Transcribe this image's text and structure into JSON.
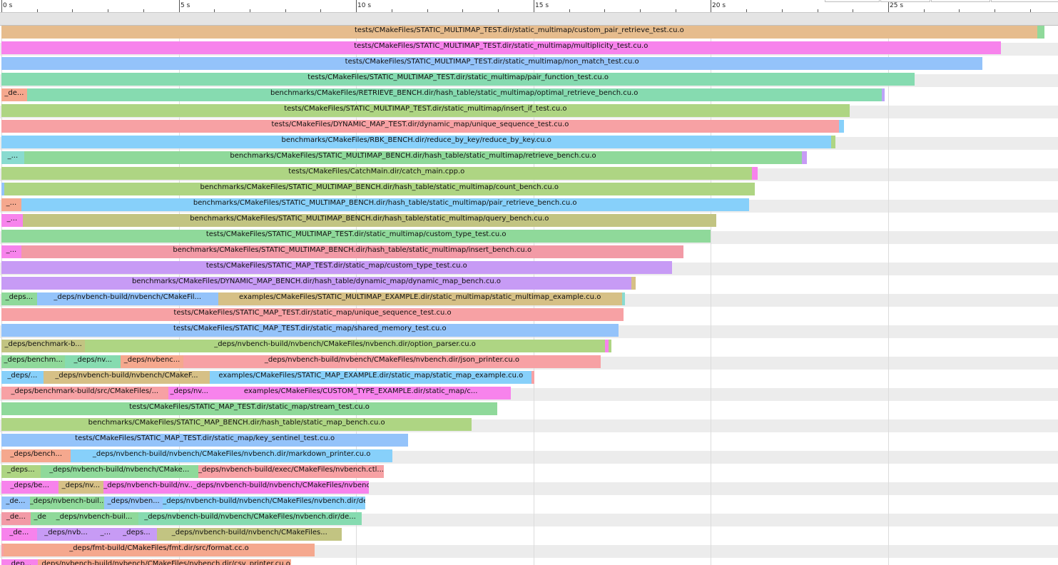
{
  "colors": {
    "orange": "#e6bc8d",
    "green": "#8fd99a",
    "pink": "#f783ec",
    "blue": "#94c3fa",
    "teal": "#86dbb0",
    "salmon": "#f5a88e",
    "lime": "#aed583",
    "rose": "#f7a1a4",
    "sky": "#87d0fa",
    "olive": "#c2c482",
    "purple": "#c79bf5",
    "violet": "#bca4f7",
    "tan": "#d6c086",
    "lightteal": "#89dbd0",
    "mint": "#9be3b6",
    "red": "#f29aa6"
  },
  "chart_data": {
    "type": "timeline",
    "xunit": "s",
    "x_ticks": [
      {
        "value": 0,
        "label": "0 s"
      },
      {
        "value": 5,
        "label": "5 s"
      },
      {
        "value": 10,
        "label": "10 s"
      },
      {
        "value": 15,
        "label": "15 s"
      },
      {
        "value": 20,
        "label": "20 s"
      },
      {
        "value": 25,
        "label": "25 s"
      }
    ],
    "rows": [
      [
        {
          "s": 0,
          "e": 29.2,
          "label": "tests/CMakeFiles/STATIC_MULTIMAP_TEST.dir/static_multimap/custom_pair_retrieve_test.cu.o",
          "c": "orange"
        },
        {
          "s": 29.2,
          "e": 29.41,
          "label": "",
          "c": "green"
        }
      ],
      [
        {
          "s": 0,
          "e": 28.17,
          "label": "tests/CMakeFiles/STATIC_MULTIMAP_TEST.dir/static_multimap/multiplicity_test.cu.o",
          "c": "pink"
        }
      ],
      [
        {
          "s": 0,
          "e": 27.66,
          "label": "tests/CMakeFiles/STATIC_MULTIMAP_TEST.dir/static_multimap/non_match_test.cu.o",
          "c": "blue"
        }
      ],
      [
        {
          "s": 0,
          "e": 25.75,
          "label": "tests/CMakeFiles/STATIC_MULTIMAP_TEST.dir/static_multimap/pair_function_test.cu.o",
          "c": "teal"
        }
      ],
      [
        {
          "s": 0,
          "e": 0.72,
          "label": "_de...",
          "c": "salmon"
        },
        {
          "s": 0.72,
          "e": 24.81,
          "label": "benchmarks/CMakeFiles/RETRIEVE_BENCH.dir/hash_table/static_multimap/optimal_retrieve_bench.cu.o",
          "c": "teal"
        },
        {
          "s": 24.81,
          "e": 24.9,
          "label": "",
          "c": "violet"
        }
      ],
      [
        {
          "s": 0,
          "e": 23.91,
          "label": "tests/CMakeFiles/STATIC_MULTIMAP_TEST.dir/static_multimap/insert_if_test.cu.o",
          "c": "lime"
        }
      ],
      [
        {
          "s": 0,
          "e": 23.61,
          "label": "tests/CMakeFiles/DYNAMIC_MAP_TEST.dir/dynamic_map/unique_sequence_test.cu.o",
          "c": "rose"
        },
        {
          "s": 23.61,
          "e": 23.75,
          "label": "",
          "c": "sky"
        }
      ],
      [
        {
          "s": 0,
          "e": 23.4,
          "label": "benchmarks/CMakeFiles/RBK_BENCH.dir/reduce_by_key/reduce_by_key.cu.o",
          "c": "sky"
        },
        {
          "s": 23.4,
          "e": 23.51,
          "label": "",
          "c": "lime"
        }
      ],
      [
        {
          "s": 0,
          "e": 0.64,
          "label": "_...",
          "c": "lightteal"
        },
        {
          "s": 0.64,
          "e": 22.57,
          "label": "benchmarks/CMakeFiles/STATIC_MULTIMAP_BENCH.dir/hash_table/static_multimap/retrieve_bench.cu.o",
          "c": "green"
        },
        {
          "s": 22.57,
          "e": 22.71,
          "label": "",
          "c": "purple"
        }
      ],
      [
        {
          "s": 0,
          "e": 21.15,
          "label": "tests/CMakeFiles/CatchMain.dir/catch_main.cpp.o",
          "c": "lime"
        },
        {
          "s": 21.15,
          "e": 21.31,
          "label": "",
          "c": "pink"
        }
      ],
      [
        {
          "s": 0,
          "e": 0.08,
          "label": "",
          "c": "blue"
        },
        {
          "s": 0.08,
          "e": 21.23,
          "label": "benchmarks/CMakeFiles/STATIC_MULTIMAP_BENCH.dir/hash_table/static_multimap/count_bench.cu.o",
          "c": "lime"
        }
      ],
      [
        {
          "s": 0,
          "e": 0.56,
          "label": "_...",
          "c": "salmon"
        },
        {
          "s": 0.56,
          "e": 21.07,
          "label": "benchmarks/CMakeFiles/STATIC_MULTIMAP_BENCH.dir/hash_table/static_multimap/pair_retrieve_bench.cu.o",
          "c": "sky"
        }
      ],
      [
        {
          "s": 0,
          "e": 0.6,
          "label": "_...",
          "c": "pink"
        },
        {
          "s": 0.6,
          "e": 20.15,
          "label": "benchmarks/CMakeFiles/STATIC_MULTIMAP_BENCH.dir/hash_table/static_multimap/query_bench.cu.o",
          "c": "olive"
        }
      ],
      [
        {
          "s": 0,
          "e": 20.0,
          "label": "tests/CMakeFiles/STATIC_MULTIMAP_TEST.dir/static_multimap/custom_type_test.cu.o",
          "c": "green"
        }
      ],
      [
        {
          "s": 0,
          "e": 0.56,
          "label": "_...",
          "c": "pink"
        },
        {
          "s": 0.56,
          "e": 19.22,
          "label": "benchmarks/CMakeFiles/STATIC_MULTIMAP_BENCH.dir/hash_table/static_multimap/insert_bench.cu.o",
          "c": "red"
        }
      ],
      [
        {
          "s": 0,
          "e": 18.9,
          "label": "tests/CMakeFiles/STATIC_MAP_TEST.dir/static_map/custom_type_test.cu.o",
          "c": "purple"
        }
      ],
      [
        {
          "s": 0,
          "e": 17.76,
          "label": "benchmarks/CMakeFiles/DYNAMIC_MAP_BENCH.dir/hash_table/dynamic_map/dynamic_map_bench.cu.o",
          "c": "purple"
        },
        {
          "s": 17.76,
          "e": 17.88,
          "label": "",
          "c": "tan"
        }
      ],
      [
        {
          "s": 0,
          "e": 1.0,
          "label": "_deps...",
          "c": "green"
        },
        {
          "s": 1.0,
          "e": 6.11,
          "label": "_deps/nvbench-build/nvbench/CMakeFil...",
          "c": "blue"
        },
        {
          "s": 6.11,
          "e": 17.49,
          "label": "examples/CMakeFiles/STATIC_MULTIMAP_EXAMPLE.dir/static_multimap/static_multimap_example.cu.o",
          "c": "tan"
        },
        {
          "s": 17.49,
          "e": 17.58,
          "label": "",
          "c": "lightteal"
        }
      ],
      [
        {
          "s": 0,
          "e": 17.54,
          "label": "tests/CMakeFiles/STATIC_MAP_TEST.dir/static_map/unique_sequence_test.cu.o",
          "c": "rose"
        }
      ],
      [
        {
          "s": 0,
          "e": 17.39,
          "label": "tests/CMakeFiles/STATIC_MAP_TEST.dir/static_map/shared_memory_test.cu.o",
          "c": "blue"
        }
      ],
      [
        {
          "s": 0,
          "e": 2.36,
          "label": "_deps/benchmark-b...",
          "c": "olive"
        },
        {
          "s": 2.36,
          "e": 17.01,
          "label": "_deps/nvbench-build/nvbench/CMakeFiles/nvbench.dir/option_parser.cu.o",
          "c": "lime"
        },
        {
          "s": 17.01,
          "e": 17.11,
          "label": "",
          "c": "pink"
        },
        {
          "s": 17.11,
          "e": 17.19,
          "label": "",
          "c": "lime"
        }
      ],
      [
        {
          "s": 0,
          "e": 1.8,
          "label": "_deps/benchm...",
          "c": "green"
        },
        {
          "s": 1.8,
          "e": 3.36,
          "label": "_deps/nv...",
          "c": "teal"
        },
        {
          "s": 3.36,
          "e": 5.13,
          "label": "_deps/nvbenc...",
          "c": "salmon"
        },
        {
          "s": 5.13,
          "e": 16.89,
          "label": "_deps/nvbench-build/nvbench/CMakeFiles/nvbench.dir/json_printer.cu.o",
          "c": "rose"
        }
      ],
      [
        {
          "s": 0,
          "e": 1.18,
          "label": "_deps/...",
          "c": "sky"
        },
        {
          "s": 1.18,
          "e": 5.88,
          "label": "_deps/nvbench-build/nvbench/CMakeF...",
          "c": "tan"
        },
        {
          "s": 5.88,
          "e": 14.95,
          "label": "examples/CMakeFiles/STATIC_MAP_EXAMPLE.dir/static_map/static_map_example.cu.o",
          "c": "sky"
        },
        {
          "s": 14.95,
          "e": 15.02,
          "label": "",
          "c": "rose"
        }
      ],
      [
        {
          "s": 0,
          "e": 4.7,
          "label": "_deps/benchmark-build/src/CMakeFiles/...",
          "c": "rose"
        },
        {
          "s": 4.7,
          "e": 5.89,
          "label": "_deps/nv...",
          "c": "pink"
        },
        {
          "s": 5.89,
          "e": 14.37,
          "label": "examples/CMakeFiles/CUSTOM_TYPE_EXAMPLE.dir/static_map/c...",
          "c": "pink"
        }
      ],
      [
        {
          "s": 0,
          "e": 13.98,
          "label": "tests/CMakeFiles/STATIC_MAP_TEST.dir/static_map/stream_test.cu.o",
          "c": "green"
        }
      ],
      [
        {
          "s": 0,
          "e": 13.26,
          "label": "benchmarks/CMakeFiles/STATIC_MAP_BENCH.dir/hash_table/static_map_bench.cu.o",
          "c": "lime"
        }
      ],
      [
        {
          "s": 0,
          "e": 11.47,
          "label": "tests/CMakeFiles/STATIC_MAP_TEST.dir/static_map/key_sentinel_test.cu.o",
          "c": "blue"
        }
      ],
      [
        {
          "s": 0,
          "e": 1.96,
          "label": "_deps/bench...",
          "c": "salmon"
        },
        {
          "s": 1.96,
          "e": 11.02,
          "label": "_deps/nvbench-build/nvbench/CMakeFiles/nvbench.dir/markdown_printer.cu.o",
          "c": "sky"
        }
      ],
      [
        {
          "s": 0,
          "e": 1.1,
          "label": "_deps...",
          "c": "lime"
        },
        {
          "s": 1.1,
          "e": 5.55,
          "label": "_deps/nvbench-build/nvbench/CMake...",
          "c": "green"
        },
        {
          "s": 5.55,
          "e": 10.78,
          "label": "_deps/nvbench-build/exec/CMakeFiles/nvbench.ctl....",
          "c": "rose"
        }
      ],
      [
        {
          "s": 0,
          "e": 1.6,
          "label": "_deps/be...",
          "c": "pink"
        },
        {
          "s": 1.6,
          "e": 2.88,
          "label": "_deps/nv...",
          "c": "tan"
        },
        {
          "s": 2.88,
          "e": 5.4,
          "label": "_deps/nvbench-build/nv...",
          "c": "pink"
        },
        {
          "s": 5.4,
          "e": 10.36,
          "label": "_deps/nvbench-build/nvbench/CMakeFiles/nvbenc...",
          "c": "pink"
        }
      ],
      [
        {
          "s": 0,
          "e": 0.8,
          "label": "_de...",
          "c": "blue"
        },
        {
          "s": 0.8,
          "e": 2.9,
          "label": "_deps/nvbench-buil...",
          "c": "green"
        },
        {
          "s": 2.9,
          "e": 4.55,
          "label": "_deps/nvben...",
          "c": "blue"
        },
        {
          "s": 4.55,
          "e": 10.25,
          "label": "_deps/nvbench-build/nvbench/CMakeFiles/nvbench.dir/det...",
          "c": "sky"
        }
      ],
      [
        {
          "s": 0,
          "e": 0.82,
          "label": "_de...",
          "c": "red"
        },
        {
          "s": 0.82,
          "e": 1.36,
          "label": "_de",
          "c": "green"
        },
        {
          "s": 1.36,
          "e": 3.87,
          "label": "_deps/nvbench-buil...",
          "c": "green"
        },
        {
          "s": 3.87,
          "e": 10.15,
          "label": "_deps/nvbench-build/nvbench/CMakeFiles/nvbench.dir/de...",
          "c": "teal"
        }
      ],
      [
        {
          "s": 0,
          "e": 1.0,
          "label": "_de...",
          "c": "pink"
        },
        {
          "s": 1.0,
          "e": 2.64,
          "label": "_deps/nvb...",
          "c": "purple"
        },
        {
          "s": 2.64,
          "e": 3.23,
          "label": "_...",
          "c": "purple"
        },
        {
          "s": 3.23,
          "e": 4.39,
          "label": "_deps...",
          "c": "purple"
        },
        {
          "s": 4.39,
          "e": 9.6,
          "label": "_deps/nvbench-build/nvbench/CMakeFiles...",
          "c": "olive"
        }
      ],
      [
        {
          "s": 0,
          "e": 0.06,
          "label": "",
          "c": "rose"
        },
        {
          "s": 0.06,
          "e": 8.83,
          "label": "_deps/fmt-build/CMakeFiles/fmt.dir/src/format.cc.o",
          "c": "salmon"
        }
      ],
      [
        {
          "s": 0,
          "e": 1.02,
          "label": "_dep...",
          "c": "pink"
        },
        {
          "s": 1.02,
          "e": 8.16,
          "label": "_deps/nvbench-build/nvbench/CMakeFiles/nvbench.dir/csv_printer.cu.o",
          "c": "salmon"
        }
      ]
    ]
  }
}
